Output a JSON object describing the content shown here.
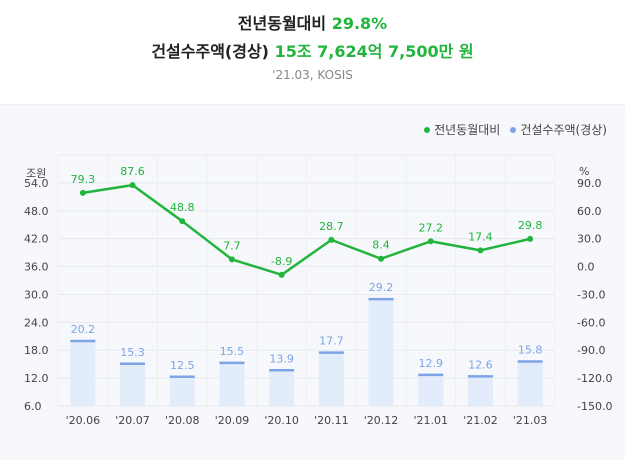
{
  "header": {
    "yoy_label": "전년동월대비",
    "yoy_value": "29.8%",
    "orders_label": "건설수주액(경상)",
    "orders_value": "15조 7,624억 7,500만 원",
    "source": "'21.03, KOSIS"
  },
  "chart_data": {
    "type": "bar+line",
    "categories": [
      "'20.06",
      "'20.07",
      "'20.08",
      "'20.09",
      "'20.10",
      "'20.11",
      "'20.12",
      "'21.01",
      "'21.02",
      "'21.03"
    ],
    "series": [
      {
        "name": "건설수주액(경상)",
        "type": "bar",
        "axis": "left",
        "color": "#7ea4e6",
        "fill": "#e3ecfb",
        "values": [
          20.2,
          15.3,
          12.5,
          15.5,
          13.9,
          17.7,
          29.2,
          12.9,
          12.6,
          15.8
        ],
        "labels": [
          "20.2",
          "15.3",
          "12.5",
          "15.5",
          "13.9",
          "17.7",
          "29.2",
          "12.9",
          "12.6",
          "15.8"
        ]
      },
      {
        "name": "전년동월대비",
        "type": "line",
        "axis": "right",
        "color": "#22b43c",
        "values": [
          79.3,
          87.6,
          48.8,
          7.7,
          -8.9,
          28.7,
          8.4,
          27.2,
          17.4,
          29.8
        ],
        "labels": [
          "79.3",
          "87.6",
          "48.8",
          "7.7",
          "-8.9",
          "28.7",
          "8.4",
          "27.2",
          "17.4",
          "29.8"
        ]
      }
    ],
    "left_axis": {
      "label": "조원",
      "ylim": [
        6.0,
        60.0
      ],
      "ticks": [
        6.0,
        12.0,
        18.0,
        24.0,
        30.0,
        36.0,
        42.0,
        48.0,
        54.0
      ],
      "tick_labels": [
        "6.0",
        "12.0",
        "18.0",
        "24.0",
        "30.0",
        "36.0",
        "42.0",
        "48.0",
        "54.0"
      ]
    },
    "right_axis": {
      "label": "%",
      "ylim": [
        -150.0,
        120.0
      ],
      "ticks": [
        -150.0,
        -120.0,
        -90.0,
        -60.0,
        -30.0,
        0.0,
        30.0,
        60.0,
        90.0
      ],
      "tick_labels": [
        "-150.0",
        "-120.0",
        "-90.0",
        "-60.0",
        "-30.0",
        "0.0",
        "30.0",
        "60.0",
        "90.0"
      ]
    },
    "grid": true,
    "legend_position": "top-right"
  }
}
